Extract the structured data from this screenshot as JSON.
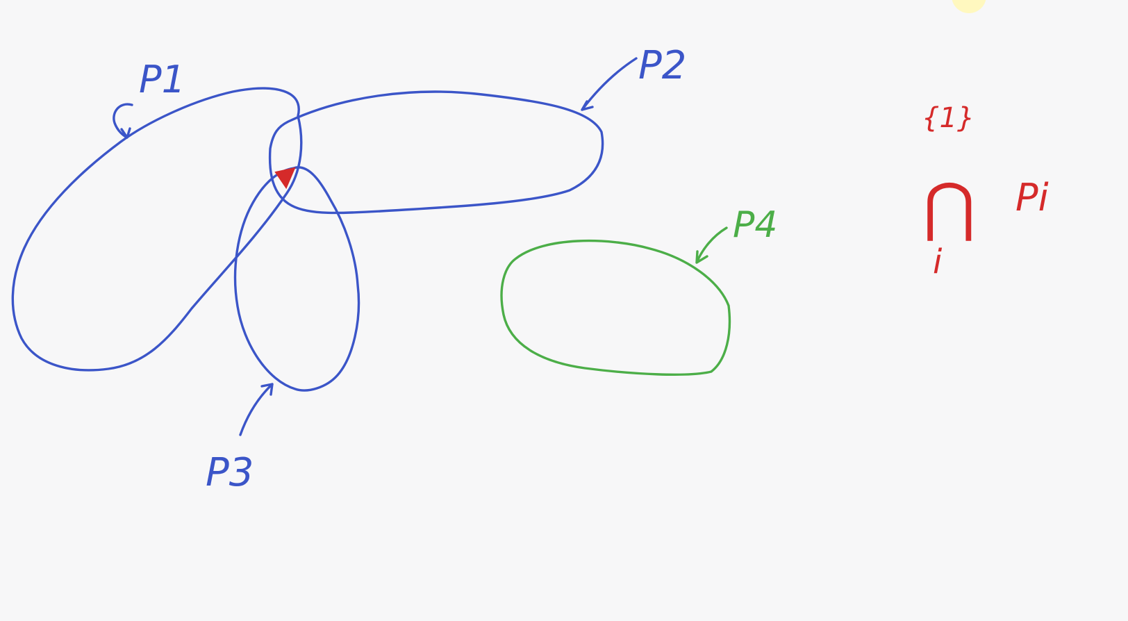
{
  "colors": {
    "background": "#f7f7f8",
    "blue_ink": "#3b55c8",
    "green_ink": "#4cae48",
    "red_ink": "#d52a2a",
    "highlight_blob": "#fff7b8"
  },
  "labels": {
    "p1": "P1",
    "p2": "P2",
    "p3": "P3",
    "p4": "P4",
    "set_one": "{1}",
    "intersection_symbol": "⋂",
    "index_i": "i",
    "p_i": "Pi"
  }
}
